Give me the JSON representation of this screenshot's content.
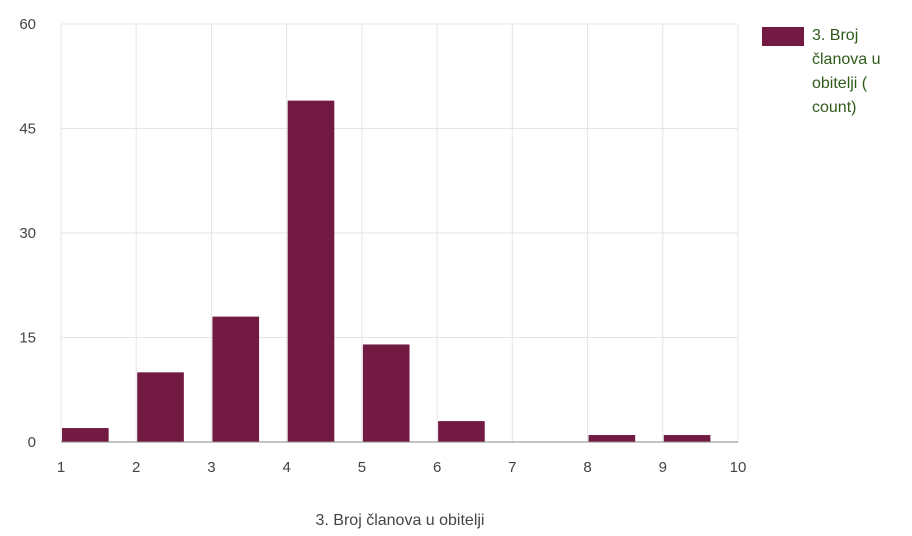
{
  "chart_data": {
    "type": "bar",
    "title": "",
    "xlabel": "3. Broj članova u obitelji",
    "ylabel": "",
    "x": [
      1,
      2,
      3,
      4,
      5,
      6,
      7,
      8,
      9
    ],
    "series": [
      {
        "name": "3. Broj članova u obitelji ( count)",
        "values": [
          2,
          10,
          18,
          49,
          14,
          3,
          0,
          1,
          1
        ]
      }
    ],
    "xlim": [
      1,
      10
    ],
    "ylim": [
      0,
      60
    ],
    "xticks": [
      "1",
      "2",
      "3",
      "4",
      "5",
      "6",
      "7",
      "8",
      "9",
      "10"
    ],
    "yticks": [
      "0",
      "15",
      "30",
      "45",
      "60"
    ],
    "grid": true,
    "legend_position": "right",
    "colors": {
      "bar": "#731a42",
      "grid": "#e5e5e5",
      "axis": "#888888",
      "legend_text": "#2f5a1a"
    }
  }
}
